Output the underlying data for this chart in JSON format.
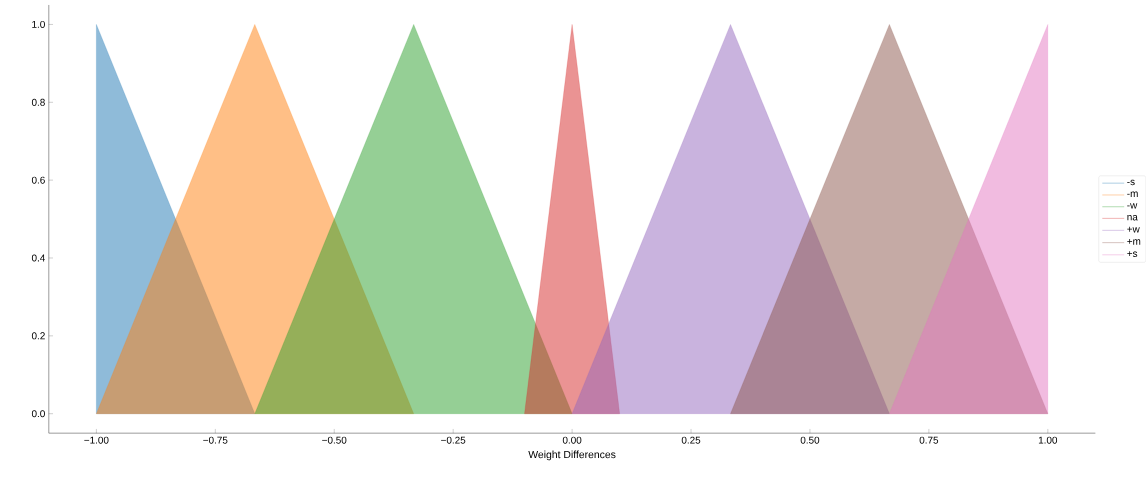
{
  "chart_data": {
    "type": "area",
    "xlabel": "Weight Differences",
    "series": [
      {
        "name": "-s",
        "color": "#1f77b4",
        "x": [
          -1,
          -1,
          -0.667
        ],
        "values": [
          0,
          1,
          0
        ]
      },
      {
        "name": "-m",
        "color": "#ff7f0e",
        "x": [
          -1,
          -0.667,
          -0.333
        ],
        "values": [
          0,
          1,
          0
        ]
      },
      {
        "name": "-w",
        "color": "#2ca02c",
        "x": [
          -0.667,
          -0.333,
          0
        ],
        "values": [
          0,
          1,
          0
        ]
      },
      {
        "name": "na",
        "color": "#d62728",
        "x": [
          -0.1,
          0,
          0.1
        ],
        "values": [
          0,
          1,
          0
        ]
      },
      {
        "name": "+w",
        "color": "#9467bd",
        "x": [
          0,
          0.333,
          0.667
        ],
        "values": [
          0,
          1,
          0
        ]
      },
      {
        "name": "+m",
        "color": "#8c564b",
        "x": [
          0.333,
          0.667,
          1
        ],
        "values": [
          0,
          1,
          0
        ]
      },
      {
        "name": "+s",
        "color": "#e377c2",
        "x": [
          0.667,
          1,
          1
        ],
        "values": [
          0,
          1,
          0
        ]
      }
    ],
    "xlim": [
      -1.1,
      1.1
    ],
    "ylim": [
      -0.05,
      1.05
    ],
    "xticks": [
      {
        "value": -1,
        "label": "−1.00"
      },
      {
        "value": -0.75,
        "label": "−0.75"
      },
      {
        "value": -0.5,
        "label": "−0.50"
      },
      {
        "value": -0.25,
        "label": "−0.25"
      },
      {
        "value": 0,
        "label": "0.00"
      },
      {
        "value": 0.25,
        "label": "0.25"
      },
      {
        "value": 0.5,
        "label": "0.50"
      },
      {
        "value": 0.75,
        "label": "0.75"
      },
      {
        "value": 1,
        "label": "1.00"
      }
    ],
    "yticks": [
      {
        "value": 0,
        "label": "0.0"
      },
      {
        "value": 0.2,
        "label": "0.2"
      },
      {
        "value": 0.4,
        "label": "0.4"
      },
      {
        "value": 0.6,
        "label": "0.6"
      },
      {
        "value": 0.8,
        "label": "0.8"
      },
      {
        "value": 1,
        "label": "1.0"
      }
    ],
    "legend": "right",
    "grid": false
  }
}
